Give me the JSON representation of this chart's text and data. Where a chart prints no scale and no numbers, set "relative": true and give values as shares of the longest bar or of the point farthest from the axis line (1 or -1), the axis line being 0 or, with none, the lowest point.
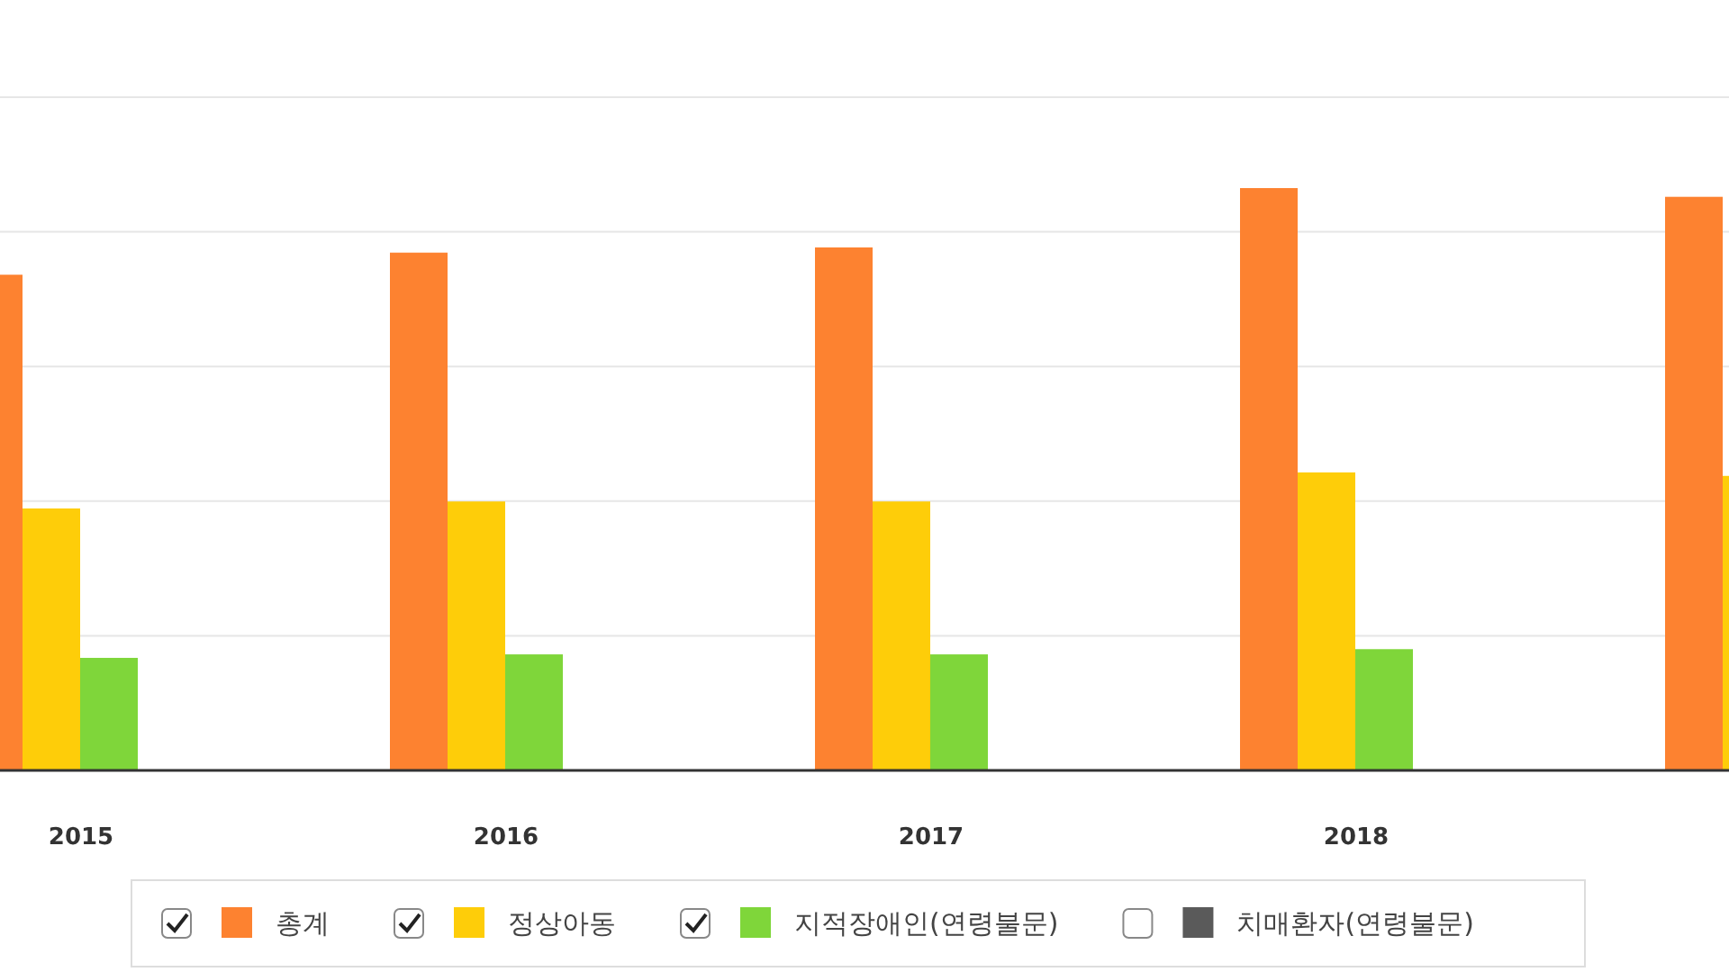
{
  "chart_data": {
    "type": "bar",
    "relative": true,
    "grid": "y",
    "legend": "bottom",
    "categories": [
      "2015",
      "2016",
      "2017",
      "2018",
      null
    ],
    "series": [
      {
        "name": "총계",
        "color": "#fd8230",
        "values": [
          0.851,
          0.889,
          0.898,
          1,
          0.985
        ]
      },
      {
        "name": "정상아동",
        "color": "#fecd09",
        "values": [
          0.449,
          0.461,
          0.461,
          0.511,
          0.505
        ]
      },
      {
        "name": "지적장애인(연령불문)",
        "color": "#7fd63a",
        "values": [
          0.192,
          0.198,
          0.198,
          0.207,
          null
        ]
      },
      {
        "name": "치매환자(연령불문)",
        "color": "#5a5a5a",
        "values": [
          null,
          null,
          null,
          null,
          null
        ]
      }
    ]
  }
}
